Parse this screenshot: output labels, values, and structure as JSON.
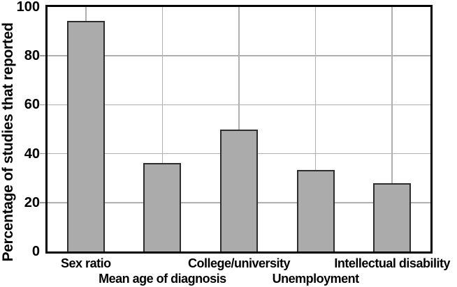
{
  "chart_data": {
    "type": "bar",
    "title": "",
    "xlabel": "",
    "ylabel": "Percentage of studies that reported",
    "ylim": [
      0,
      100
    ],
    "yticks": [
      0,
      20,
      40,
      60,
      80,
      100
    ],
    "categories": [
      "Sex ratio",
      "Mean age of diagnosis",
      "College/university",
      "Unemployment",
      "Intellectual disability"
    ],
    "values": [
      94.4,
      36.1,
      50.0,
      33.3,
      27.8
    ],
    "legend": null,
    "grid": "horizontal and vertical gridlines at ticks and category centers",
    "x_label_layout": "staggered two rows",
    "colors": {
      "bar_fill": "#ababab",
      "bar_border": "#2d2d2d",
      "axis": "#000000",
      "gridline": "#b0b0b0",
      "tick_mark": "#999999",
      "text": "#000000",
      "background": "#ffffff"
    }
  }
}
